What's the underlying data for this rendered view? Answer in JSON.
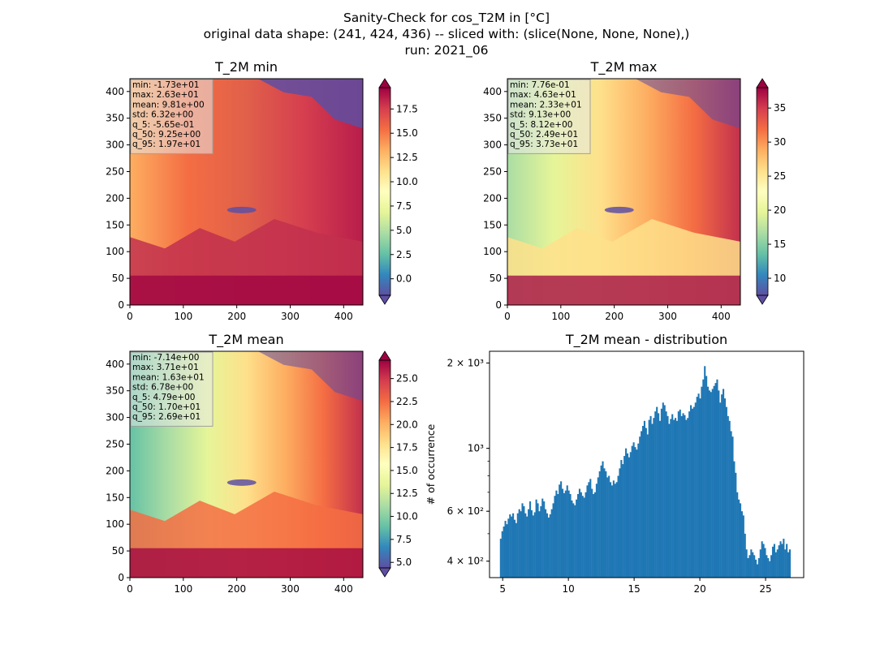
{
  "figure": {
    "title_lines": [
      "Sanity-Check for cos_T2M in [°C]",
      "original data shape: (241, 424, 436) -- sliced with: (slice(None, None, None),)",
      "run: 2021_06"
    ]
  },
  "chart_data": [
    {
      "type": "heatmap",
      "title": "T_2M min",
      "x_ticks": [
        0,
        100,
        200,
        300,
        400
      ],
      "y_ticks": [
        0,
        50,
        100,
        150,
        200,
        250,
        300,
        350,
        400
      ],
      "xlim": [
        0,
        436
      ],
      "ylim": [
        0,
        424
      ],
      "colormap": "Spectral_r",
      "colorbar": {
        "range": [
          -1.7,
          19.7
        ],
        "ticks": [
          0.0,
          2.5,
          5.0,
          7.5,
          10.0,
          12.5,
          15.0,
          17.5
        ],
        "extend": "both"
      },
      "stats": [
        "min: -1.73e+01",
        "max: 2.63e+01",
        "mean: 9.81e+00",
        "std: 6.32e+00",
        "q_5: -5.65e-01",
        "q_50: 9.25e+00",
        "q_95: 1.97e+01"
      ]
    },
    {
      "type": "heatmap",
      "title": "T_2M max",
      "x_ticks": [
        0,
        100,
        200,
        300,
        400
      ],
      "y_ticks": [
        0,
        50,
        100,
        150,
        200,
        250,
        300,
        350,
        400
      ],
      "xlim": [
        0,
        436
      ],
      "ylim": [
        0,
        424
      ],
      "colormap": "Spectral_r",
      "colorbar": {
        "range": [
          7.5,
          38.0
        ],
        "ticks": [
          10,
          15,
          20,
          25,
          30,
          35
        ],
        "extend": "both"
      },
      "stats": [
        "min: 7.76e-01",
        "max: 4.63e+01",
        "mean: 2.33e+01",
        "std: 9.13e+00",
        "q_5: 8.12e+00",
        "q_50: 2.49e+01",
        "q_95: 3.73e+01"
      ]
    },
    {
      "type": "heatmap",
      "title": "T_2M mean",
      "x_ticks": [
        0,
        100,
        200,
        300,
        400
      ],
      "y_ticks": [
        0,
        50,
        100,
        150,
        200,
        250,
        300,
        350,
        400
      ],
      "xlim": [
        0,
        436
      ],
      "ylim": [
        0,
        424
      ],
      "colormap": "Spectral_r",
      "colorbar": {
        "range": [
          4.4,
          27.0
        ],
        "ticks": [
          5.0,
          7.5,
          10.0,
          12.5,
          15.0,
          17.5,
          20.0,
          22.5,
          25.0
        ],
        "extend": "both"
      },
      "stats": [
        "min: -7.14e+00",
        "max: 3.71e+01",
        "mean: 1.63e+01",
        "std: 6.78e+00",
        "q_5: 4.79e+00",
        "q_50: 1.70e+01",
        "q_95: 2.69e+01"
      ]
    },
    {
      "type": "bar",
      "subtype": "histogram",
      "title": "T_2M mean - distribution",
      "ylabel": "# of occurrence",
      "yscale": "log",
      "xlim": [
        4.0,
        27.9
      ],
      "ylim": [
        350,
        2200
      ],
      "x_ticks": [
        5,
        10,
        15,
        20,
        25
      ],
      "y_ticks": [
        {
          "value": 400,
          "label": "4 × 10²"
        },
        {
          "value": 600,
          "label": "6 × 10²"
        },
        {
          "value": 1000,
          "label": "10³"
        },
        {
          "value": 2000,
          "label": "2 × 10³"
        }
      ],
      "color": "#1f77b4",
      "bin_range": [
        4.79,
        26.9
      ],
      "counts": [
        480,
        510,
        530,
        555,
        540,
        565,
        585,
        575,
        590,
        560,
        545,
        590,
        610,
        600,
        640,
        625,
        590,
        575,
        610,
        650,
        605,
        580,
        595,
        660,
        640,
        600,
        625,
        665,
        650,
        610,
        590,
        570,
        585,
        610,
        640,
        680,
        710,
        690,
        745,
        765,
        720,
        695,
        710,
        740,
        710,
        690,
        655,
        640,
        630,
        660,
        690,
        720,
        700,
        680,
        670,
        700,
        740,
        760,
        780,
        720,
        690,
        700,
        750,
        790,
        830,
        870,
        900,
        850,
        830,
        790,
        800,
        760,
        740,
        770,
        750,
        760,
        800,
        850,
        910,
        880,
        940,
        1000,
        960,
        930,
        970,
        1020,
        1050,
        1010,
        990,
        1040,
        1100,
        1150,
        1200,
        1250,
        1180,
        1120,
        1260,
        1300,
        1220,
        1280,
        1350,
        1400,
        1330,
        1250,
        1380,
        1450,
        1420,
        1350,
        1300,
        1220,
        1270,
        1320,
        1260,
        1280,
        1250,
        1350,
        1370,
        1300,
        1330,
        1310,
        1260,
        1280,
        1350,
        1420,
        1380,
        1400,
        1450,
        1520,
        1560,
        1500,
        1650,
        1750,
        1950,
        1800,
        1650,
        1600,
        1580,
        1620,
        1660,
        1700,
        1750,
        1600,
        1450,
        1550,
        1620,
        1500,
        1400,
        1300,
        1250,
        1150,
        1100,
        900,
        820,
        700,
        660,
        640,
        600,
        580,
        500,
        440,
        410,
        420,
        440,
        430,
        420,
        405,
        390,
        410,
        440,
        470,
        460,
        445,
        420,
        410,
        400,
        420,
        450,
        460,
        430,
        440,
        455,
        470,
        460,
        480,
        440,
        460,
        430,
        440
      ]
    }
  ]
}
